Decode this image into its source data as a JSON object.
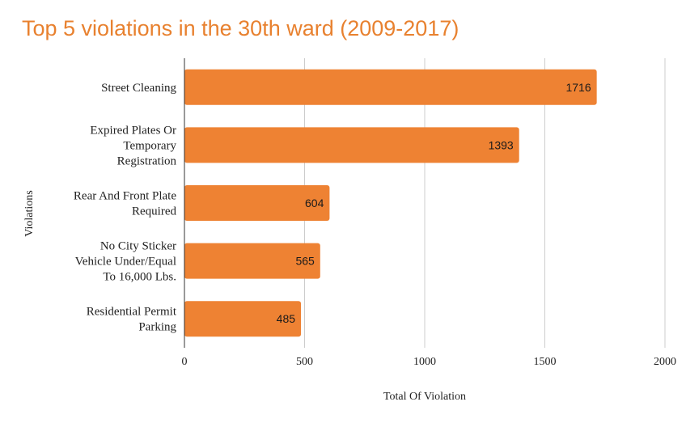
{
  "chart_data": {
    "type": "bar",
    "orientation": "horizontal",
    "title": "Top 5 violations in the 30th ward (2009-2017)",
    "xlabel": "Total Of Violation",
    "ylabel": "Violations",
    "xlim": [
      0,
      2000
    ],
    "xticks": [
      "0",
      "500",
      "1000",
      "1500",
      "2000"
    ],
    "grid": true,
    "bar_color": "#ee8233",
    "title_color": "#e8812f",
    "categories": [
      [
        "Street Cleaning"
      ],
      [
        "Expired Plates Or",
        "Temporary",
        "Registration"
      ],
      [
        "Rear And Front Plate",
        "Required"
      ],
      [
        "No City Sticker",
        "Vehicle Under/Equal",
        "To 16,000 Lbs."
      ],
      [
        "Residential Permit",
        "Parking"
      ]
    ],
    "values": [
      1716,
      1393,
      604,
      565,
      485
    ]
  }
}
